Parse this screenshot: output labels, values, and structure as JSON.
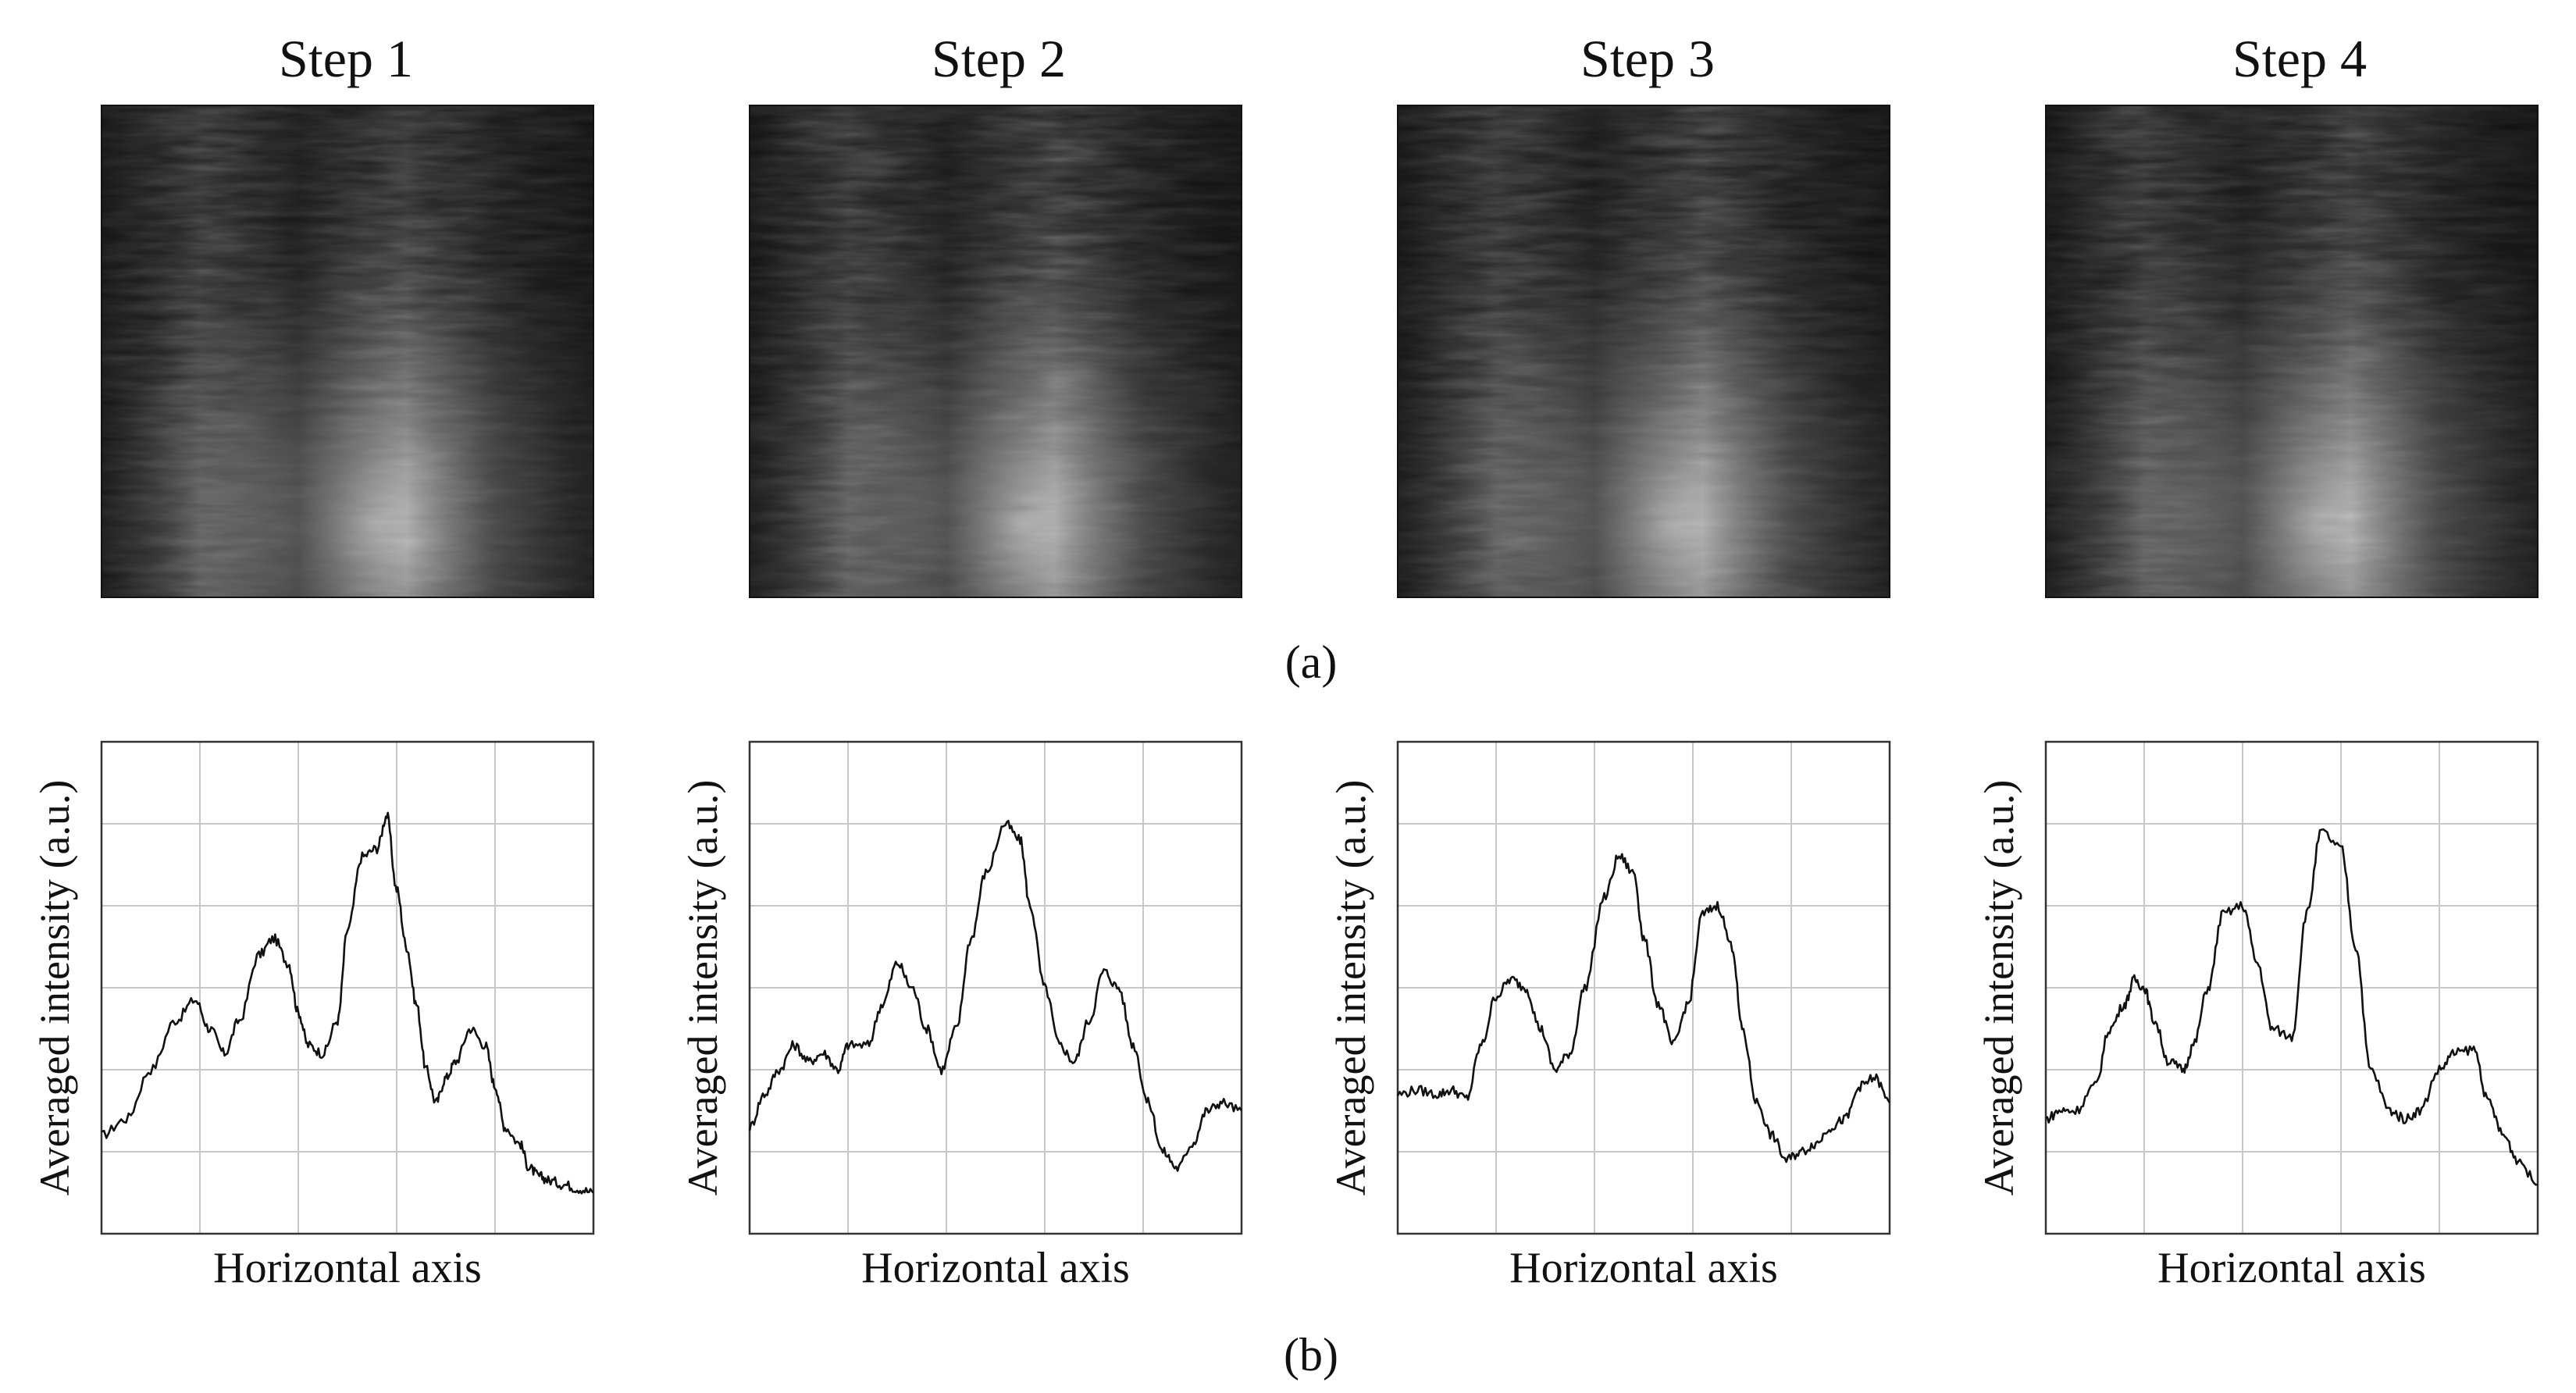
{
  "figure": {
    "panel_a_label": "(a)",
    "panel_b_label": "(b)"
  },
  "steps": [
    {
      "title": "Step 1"
    },
    {
      "title": "Step 2"
    },
    {
      "title": "Step 3"
    },
    {
      "title": "Step 4"
    }
  ],
  "chart_data": [
    {
      "type": "line",
      "title": "",
      "xlabel": "Horizontal axis",
      "ylabel": "Averaged intensity (a.u.)",
      "xlim": [
        0,
        100
      ],
      "ylim": [
        0,
        6
      ],
      "grid": true,
      "x": [
        0,
        5,
        10,
        15,
        19,
        22,
        25,
        28,
        32,
        35,
        38,
        40,
        42,
        45,
        48,
        50,
        53,
        56,
        58,
        60,
        62,
        64,
        66,
        68,
        70,
        72,
        75,
        78,
        80,
        82,
        85,
        87,
        89,
        91,
        94,
        97,
        100
      ],
      "series": [
        {
          "values": [
            1.2,
            1.4,
            2.0,
            2.6,
            2.85,
            2.5,
            2.2,
            2.6,
            3.4,
            3.6,
            3.3,
            2.7,
            2.3,
            2.2,
            2.6,
            3.7,
            4.6,
            4.7,
            5.1,
            4.2,
            3.5,
            2.8,
            2.0,
            1.6,
            1.9,
            2.1,
            2.5,
            2.3,
            1.8,
            1.3,
            1.1,
            0.8,
            0.7,
            0.65,
            0.6,
            0.55,
            0.5
          ]
        }
      ]
    },
    {
      "type": "line",
      "title": "",
      "xlabel": "Horizontal axis",
      "ylabel": "Averaged intensity (a.u.)",
      "xlim": [
        0,
        100
      ],
      "ylim": [
        0,
        6
      ],
      "grid": true,
      "x": [
        0,
        3,
        6,
        9,
        12,
        15,
        18,
        20,
        24,
        27,
        30,
        33,
        36,
        39,
        42,
        45,
        48,
        52,
        55,
        57,
        60,
        63,
        66,
        69,
        72,
        75,
        78,
        81,
        84,
        87,
        90,
        93,
        96,
        100
      ],
      "series": [
        {
          "values": [
            1.3,
            1.7,
            2.0,
            2.3,
            2.1,
            2.2,
            2.0,
            2.3,
            2.3,
            2.8,
            3.3,
            3.0,
            2.5,
            2.0,
            2.5,
            3.6,
            4.4,
            5.0,
            4.8,
            4.0,
            3.0,
            2.3,
            2.1,
            2.6,
            3.2,
            3.0,
            2.3,
            1.6,
            1.0,
            0.8,
            1.1,
            1.5,
            1.6,
            1.5
          ]
        }
      ]
    },
    {
      "type": "line",
      "title": "",
      "xlabel": "Horizontal axis",
      "ylabel": "Averaged intensity (a.u.)",
      "xlim": [
        0,
        100
      ],
      "ylim": [
        0,
        6
      ],
      "grid": true,
      "x": [
        0,
        4,
        8,
        11,
        14,
        17,
        20,
        23,
        26,
        29,
        32,
        35,
        38,
        42,
        45,
        48,
        50,
        53,
        56,
        59,
        62,
        65,
        68,
        70,
        73,
        76,
        79,
        82,
        85,
        88,
        91,
        94,
        97,
        100
      ],
      "series": [
        {
          "values": [
            1.7,
            1.75,
            1.7,
            1.75,
            1.65,
            2.3,
            2.9,
            3.1,
            3.0,
            2.5,
            2.0,
            2.2,
            3.0,
            4.1,
            4.6,
            4.4,
            3.6,
            2.8,
            2.3,
            2.8,
            3.9,
            4.0,
            3.5,
            2.5,
            1.6,
            1.2,
            0.9,
            1.0,
            1.1,
            1.3,
            1.4,
            1.8,
            1.9,
            1.6
          ]
        }
      ]
    },
    {
      "type": "line",
      "title": "",
      "xlabel": "Horizontal axis",
      "ylabel": "Averaged intensity (a.u.)",
      "xlim": [
        0,
        100
      ],
      "ylim": [
        0,
        6
      ],
      "grid": true,
      "x": [
        0,
        3,
        6,
        10,
        13,
        16,
        18,
        20,
        22,
        25,
        28,
        30,
        33,
        36,
        40,
        43,
        46,
        50,
        53,
        56,
        60,
        63,
        66,
        70,
        73,
        76,
        80,
        83,
        87,
        90,
        93,
        96,
        100
      ],
      "series": [
        {
          "values": [
            1.4,
            1.5,
            1.5,
            1.8,
            2.5,
            2.8,
            3.1,
            3.0,
            2.6,
            2.1,
            2.0,
            2.3,
            3.0,
            3.9,
            4.0,
            3.3,
            2.5,
            2.4,
            3.9,
            4.9,
            4.7,
            3.5,
            2.0,
            1.5,
            1.4,
            1.5,
            2.0,
            2.2,
            2.25,
            1.6,
            1.2,
            0.9,
            0.6
          ]
        }
      ]
    }
  ]
}
